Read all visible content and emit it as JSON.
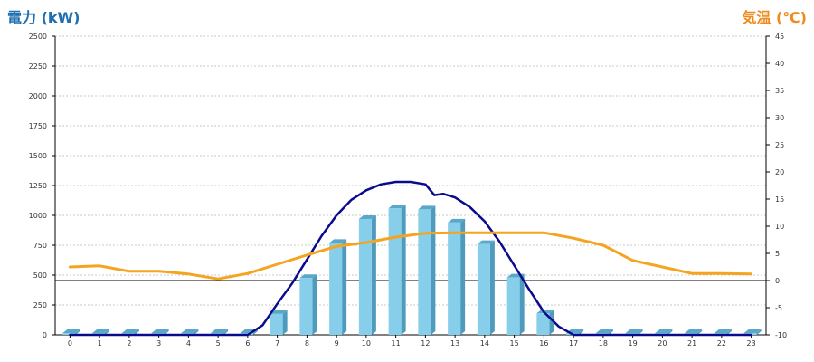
{
  "chart_data": {
    "type": "bar",
    "left_axis_title": "電力 (kW)",
    "right_axis_title": "気温 (℃)",
    "categories": [
      "0",
      "1",
      "2",
      "3",
      "4",
      "5",
      "6",
      "7",
      "8",
      "9",
      "10",
      "11",
      "12",
      "13",
      "14",
      "15",
      "16",
      "17",
      "18",
      "19",
      "20",
      "21",
      "22",
      "23"
    ],
    "left_ylim": [
      0,
      2500
    ],
    "left_yticks": [
      "0",
      "250",
      "500",
      "750",
      "1000",
      "1250",
      "1500",
      "1750",
      "2000",
      "2250",
      "2500"
    ],
    "right_ylim": [
      -10,
      45
    ],
    "right_yticks": [
      "-10",
      "-5",
      "0",
      "5",
      "10",
      "15",
      "20",
      "25",
      "30",
      "35",
      "40",
      "45"
    ],
    "grid": "horizontal dotted",
    "reference_line_temp": 0,
    "series": [
      {
        "kind": "bar",
        "axis": "left",
        "color": "#87ceeb",
        "values": [
          0,
          0,
          0,
          0,
          0,
          0,
          0,
          175,
          475,
          770,
          970,
          1060,
          1050,
          940,
          760,
          480,
          180,
          0,
          0,
          0,
          0,
          0,
          0,
          0
        ]
      },
      {
        "kind": "line",
        "axis": "left",
        "color": "#0a0a8c",
        "x": [
          0,
          1,
          2,
          3,
          4,
          5,
          6,
          6.5,
          7,
          7.5,
          8,
          8.5,
          9,
          9.5,
          10,
          10.5,
          11,
          11.5,
          12,
          12.3,
          12.6,
          13,
          13.5,
          14,
          14.5,
          15,
          15.5,
          16,
          16.5,
          17,
          18,
          19,
          20,
          21,
          22,
          23
        ],
        "values": [
          0,
          0,
          0,
          0,
          0,
          0,
          0,
          80,
          260,
          430,
          630,
          830,
          1000,
          1130,
          1210,
          1260,
          1280,
          1280,
          1260,
          1170,
          1180,
          1150,
          1070,
          950,
          780,
          580,
          380,
          190,
          70,
          0,
          0,
          0,
          0,
          0,
          0,
          0
        ]
      },
      {
        "kind": "line",
        "axis": "right",
        "color": "#f5a41f",
        "values": [
          2.5,
          2.7,
          1.7,
          1.7,
          1.2,
          0.3,
          1.3,
          3.0,
          4.7,
          6.3,
          7.0,
          8.0,
          8.7,
          8.8,
          8.8,
          8.8,
          8.8,
          7.8,
          6.5,
          3.7,
          2.5,
          1.3,
          1.3,
          1.2
        ]
      }
    ]
  }
}
